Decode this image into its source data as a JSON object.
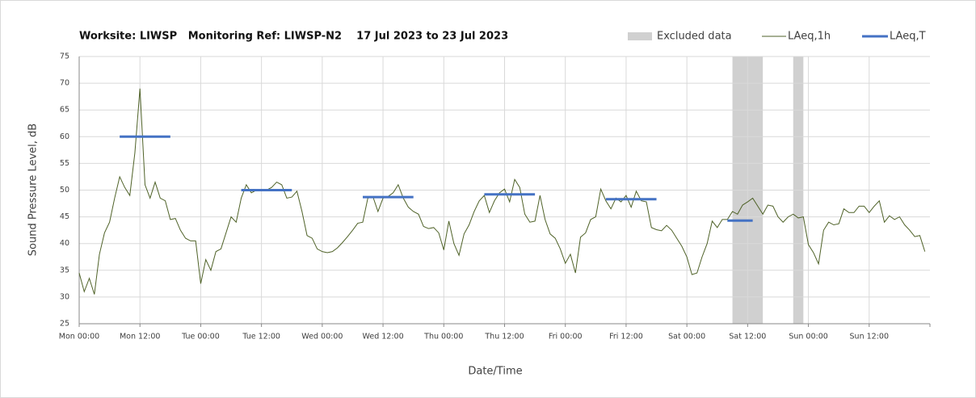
{
  "chart_data": {
    "type": "line",
    "title": "Worksite: LIWSP   Monitoring Ref: LIWSP-N2    17 Jul 2023 to 23 Jul 2023",
    "xlabel": "Date/Time",
    "ylabel": "Sound Pressure Level, dB",
    "xlim": [
      0,
      168
    ],
    "ylim": [
      25,
      75
    ],
    "xticks": [
      {
        "value": 0,
        "label": "Mon 00:00"
      },
      {
        "value": 12,
        "label": "Mon 12:00"
      },
      {
        "value": 24,
        "label": "Tue 00:00"
      },
      {
        "value": 36,
        "label": "Tue 12:00"
      },
      {
        "value": 48,
        "label": "Wed 00:00"
      },
      {
        "value": 60,
        "label": "Wed 12:00"
      },
      {
        "value": 72,
        "label": "Thu 00:00"
      },
      {
        "value": 84,
        "label": "Thu 12:00"
      },
      {
        "value": 96,
        "label": "Fri 00:00"
      },
      {
        "value": 108,
        "label": "Fri 12:00"
      },
      {
        "value": 120,
        "label": "Sat 00:00"
      },
      {
        "value": 132,
        "label": "Sat 12:00"
      },
      {
        "value": 144,
        "label": "Sun 00:00"
      },
      {
        "value": 156,
        "label": "Sun 12:00"
      }
    ],
    "yticks": [
      25,
      30,
      35,
      40,
      45,
      50,
      55,
      60,
      65,
      70,
      75
    ],
    "grid": true,
    "excluded_name": "Excluded data",
    "excluded_color": "#d0d0d0",
    "excluded": [
      [
        129,
        135
      ],
      [
        141,
        143
      ]
    ],
    "x": [
      0,
      1,
      2,
      3,
      4,
      5,
      6,
      7,
      8,
      9,
      10,
      11,
      12,
      13,
      14,
      15,
      16,
      17,
      18,
      19,
      20,
      21,
      22,
      23,
      24,
      25,
      26,
      27,
      28,
      29,
      30,
      31,
      32,
      33,
      34,
      35,
      36,
      37,
      38,
      39,
      40,
      41,
      42,
      43,
      44,
      45,
      46,
      47,
      48,
      49,
      50,
      51,
      52,
      53,
      54,
      55,
      56,
      57,
      58,
      59,
      60,
      61,
      62,
      63,
      64,
      65,
      66,
      67,
      68,
      69,
      70,
      71,
      72,
      73,
      74,
      75,
      76,
      77,
      78,
      79,
      80,
      81,
      82,
      83,
      84,
      85,
      86,
      87,
      88,
      89,
      90,
      91,
      92,
      93,
      94,
      95,
      96,
      97,
      98,
      99,
      100,
      101,
      102,
      103,
      104,
      105,
      106,
      107,
      108,
      109,
      110,
      111,
      112,
      113,
      114,
      115,
      116,
      117,
      118,
      119,
      120,
      121,
      122,
      123,
      124,
      125,
      126,
      127,
      128,
      129,
      130,
      131,
      132,
      133,
      134,
      135,
      136,
      137,
      138,
      139,
      140,
      141,
      142,
      143,
      144,
      145,
      146,
      147,
      148,
      149,
      150,
      151,
      152,
      153,
      154,
      155,
      156,
      157,
      158,
      159,
      160,
      161,
      162,
      163,
      164,
      165,
      166,
      167
    ],
    "series": [
      {
        "name": "LAeq,1h",
        "color": "#4f6228",
        "values": [
          34.5,
          31,
          33.5,
          30.5,
          38,
          42,
          44,
          48.5,
          52.5,
          50.5,
          49,
          57,
          69,
          51,
          48.5,
          51.5,
          48.5,
          48,
          44.5,
          44.7,
          42.5,
          41,
          40.5,
          40.5,
          32.5,
          37,
          35,
          38.5,
          39,
          42,
          45,
          44,
          48.5,
          51,
          49.5,
          50,
          50,
          50,
          50.5,
          51.5,
          51,
          48.5,
          48.7,
          49.8,
          46,
          41.5,
          41,
          39,
          38.5,
          38.3,
          38.5,
          39.2,
          40.2,
          41.3,
          42.5,
          43.8,
          44,
          48.5,
          48.8,
          46,
          48.5,
          48.8,
          49.5,
          51,
          48.5,
          46.8,
          46,
          45.5,
          43.2,
          42.8,
          43,
          42,
          38.8,
          44.2,
          40,
          37.8,
          41.8,
          43.5,
          46,
          48,
          49,
          45.8,
          48,
          49.5,
          50.2,
          47.8,
          52,
          50.5,
          45.5,
          44,
          44.2,
          49,
          44.5,
          41.8,
          41,
          39,
          36.3,
          38,
          34.5,
          41.2,
          42,
          44.5,
          45,
          50.2,
          48,
          46.5,
          48.5,
          47.8,
          49,
          46.8,
          49.8,
          48,
          47.8,
          43,
          42.6,
          42.4,
          43.4,
          42.5,
          41,
          39.5,
          37.5,
          34.2,
          34.5,
          37.5,
          40,
          44.2,
          43,
          44.5,
          44.5,
          46,
          45.5,
          47.2,
          47.8,
          48.5,
          47,
          45.5,
          47.2,
          47,
          45,
          44,
          45,
          45.5,
          44.8,
          45,
          39.8,
          38.3,
          36.2,
          42.5,
          44,
          43.5,
          43.7,
          46.5,
          45.8,
          45.8,
          47,
          47,
          45.8,
          47,
          48,
          44,
          45.2,
          44.5,
          45,
          43.5,
          42.5,
          41.3,
          41.5,
          38.5
        ]
      },
      {
        "name": "LAeq,T",
        "color": "#4472c4",
        "segments": [
          {
            "x": [
              8,
              18
            ],
            "value": 60
          },
          {
            "x": [
              32,
              42
            ],
            "value": 50
          },
          {
            "x": [
              56,
              66
            ],
            "value": 48.7
          },
          {
            "x": [
              80,
              90
            ],
            "value": 49.2
          },
          {
            "x": [
              104,
              114
            ],
            "value": 48.3
          },
          {
            "x": [
              128,
              133
            ],
            "value": 44.3
          }
        ]
      }
    ]
  }
}
